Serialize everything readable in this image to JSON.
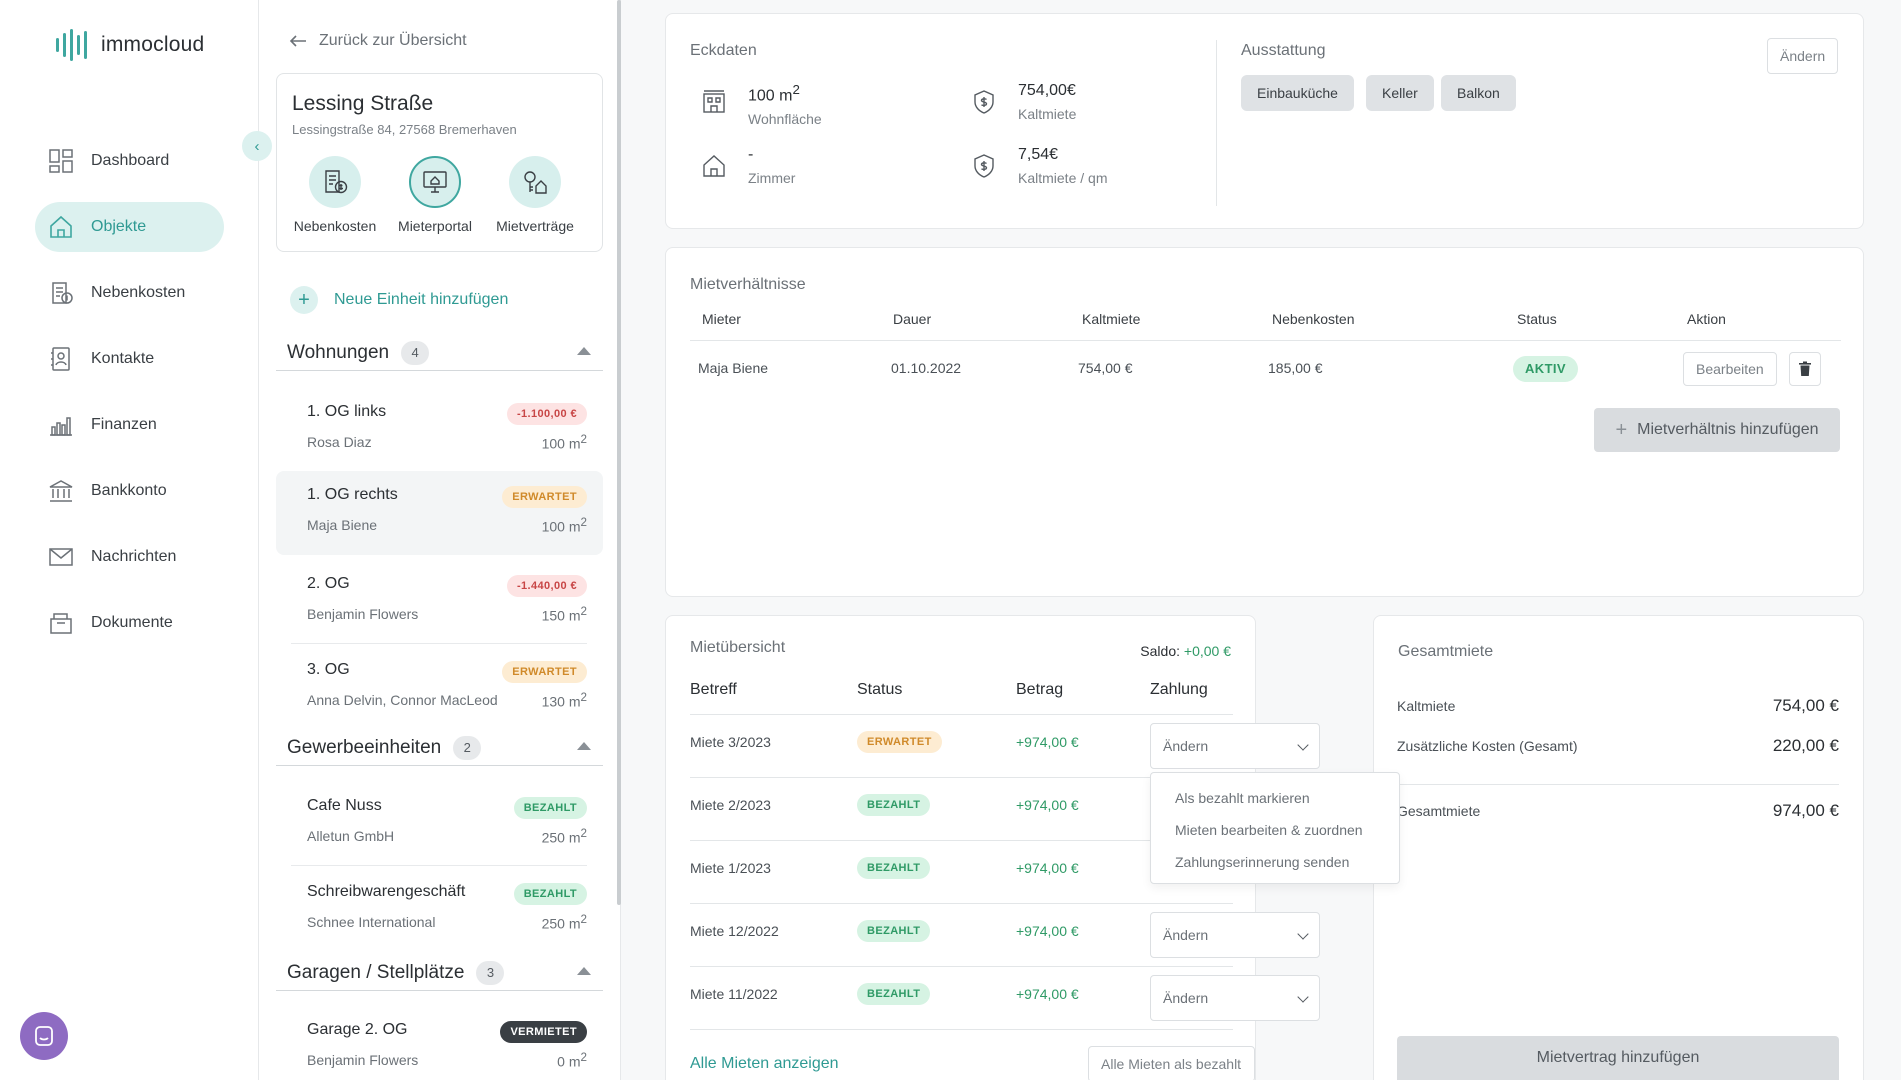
{
  "brand": {
    "name": "immocloud",
    "accent": "#3fa7a0",
    "accent_light": "#dcf1ef"
  },
  "nav": {
    "items": [
      {
        "label": "Dashboard",
        "icon": "dashboard-icon",
        "active": false
      },
      {
        "label": "Objekte",
        "icon": "house-icon",
        "active": true
      },
      {
        "label": "Nebenkosten",
        "icon": "receipt-icon",
        "active": false
      },
      {
        "label": "Kontakte",
        "icon": "contacts-icon",
        "active": false
      },
      {
        "label": "Finanzen",
        "icon": "bar-chart-icon",
        "active": false
      },
      {
        "label": "Bankkonto",
        "icon": "bank-icon",
        "active": false
      },
      {
        "label": "Nachrichten",
        "icon": "mail-icon",
        "active": false
      },
      {
        "label": "Dokumente",
        "icon": "folder-icon",
        "active": false
      }
    ]
  },
  "middle": {
    "back_label": "Zurück zur Übersicht",
    "property": {
      "title": "Lessing Straße",
      "address": "Lessingstraße 84, 27568 Bremerhaven",
      "actions": [
        {
          "label": "Nebenkosten",
          "icon": "receipt-dollar-icon"
        },
        {
          "label": "Mieterportal",
          "icon": "monitor-house-icon"
        },
        {
          "label": "Mietverträge",
          "icon": "key-house-icon"
        }
      ]
    },
    "add_unit_label": "Neue Einheit hinzufügen",
    "groups": [
      {
        "title": "Wohnungen",
        "count": "4"
      },
      {
        "title": "Gewerbeeinheiten",
        "count": "2"
      },
      {
        "title": "Garagen / Stellplätze",
        "count": "3"
      }
    ],
    "units": [
      {
        "name": "1. OG links",
        "tenant": "Rosa Diaz",
        "badge": "-1.100,00 €",
        "size": "100 m",
        "sup": "2"
      },
      {
        "name": "1. OG rechts",
        "tenant": "Maja Biene",
        "badge": "ERWARTET",
        "size": "100 m",
        "sup": "2"
      },
      {
        "name": "2. OG",
        "tenant": "Benjamin Flowers",
        "badge": "-1.440,00 €",
        "size": "150 m",
        "sup": "2"
      },
      {
        "name": "3. OG",
        "tenant": "Anna Delvin, Connor MacLeod",
        "badge": "ERWARTET",
        "size": "130 m",
        "sup": "2"
      },
      {
        "name": "Cafe Nuss",
        "tenant": "Alletun GmbH",
        "badge": "BEZAHLT",
        "size": "250 m",
        "sup": "2"
      },
      {
        "name": "Schreibwarengeschäft",
        "tenant": "Schnee International",
        "badge": "BEZAHLT",
        "size": "250 m",
        "sup": "2"
      },
      {
        "name": "Garage 2. OG",
        "tenant": "Benjamin Flowers",
        "badge": "VERMIETET",
        "size": "0 m",
        "sup": "2"
      }
    ]
  },
  "eckdaten": {
    "title": "Eckdaten",
    "items": [
      {
        "value": "100 m",
        "sup": "2",
        "label": "Wohnfläche",
        "icon": "area-building-icon"
      },
      {
        "value": "754,00€",
        "label": "Kaltmiete",
        "icon": "shield-dollar-icon"
      },
      {
        "value": "-",
        "label": "Zimmer",
        "icon": "house-outline-icon"
      },
      {
        "value": "7,54€",
        "label": "Kaltmiete / qm",
        "icon": "shield-dollar-icon"
      }
    ]
  },
  "ausstattung": {
    "title": "Ausstattung",
    "edit_label": "Ändern",
    "chips": [
      "Einbauküche",
      "Keller",
      "Balkon"
    ]
  },
  "mietverhaeltnisse": {
    "title": "Mietverhältnisse",
    "headers": [
      "Mieter",
      "Dauer",
      "Kaltmiete",
      "Nebenkosten",
      "Status",
      "Aktion"
    ],
    "rows": [
      {
        "mieter": "Maja Biene",
        "dauer": "01.10.2022",
        "kaltmiete": "754,00 €",
        "nebenkosten": "185,00 €",
        "status": "AKTIV",
        "edit": "Bearbeiten"
      }
    ],
    "add_label": "Mietverhältnis hinzufügen"
  },
  "mietuebersicht": {
    "title": "Mietübersicht",
    "saldo_label": "Saldo:",
    "saldo_value": "+0,00 €",
    "headers": [
      "Betreff",
      "Status",
      "Betrag",
      "Zahlung"
    ],
    "rows": [
      {
        "betreff": "Miete 3/2023",
        "status": "ERWARTET",
        "betrag": "+974,00 €",
        "zahlung": "Ändern"
      },
      {
        "betreff": "Miete 2/2023",
        "status": "BEZAHLT",
        "betrag": "+974,00 €",
        "zahlung": ""
      },
      {
        "betreff": "Miete 1/2023",
        "status": "BEZAHLT",
        "betrag": "+974,00 €",
        "zahlung": ""
      },
      {
        "betreff": "Miete 12/2022",
        "status": "BEZAHLT",
        "betrag": "+974,00 €",
        "zahlung": "Ändern"
      },
      {
        "betreff": "Miete 11/2022",
        "status": "BEZAHLT",
        "betrag": "+974,00 €",
        "zahlung": "Ändern"
      }
    ],
    "dropdown": [
      "Als bezahlt markieren",
      "Mieten bearbeiten & zuordnen",
      "Zahlungserinnerung senden"
    ],
    "show_all_label": "Alle Mieten anzeigen",
    "mark_all_label": "Alle Mieten als bezahlt markieren"
  },
  "gesamtmiete": {
    "title": "Gesamtmiete",
    "rows": [
      {
        "label": "Kaltmiete",
        "value": "754,00 €"
      },
      {
        "label": "Zusätzliche Kosten (Gesamt)",
        "value": "220,00 €"
      },
      {
        "label": "Gesamtmiete",
        "value": "974,00 €"
      }
    ],
    "add_contract_label": "Mietvertrag hinzufügen"
  }
}
